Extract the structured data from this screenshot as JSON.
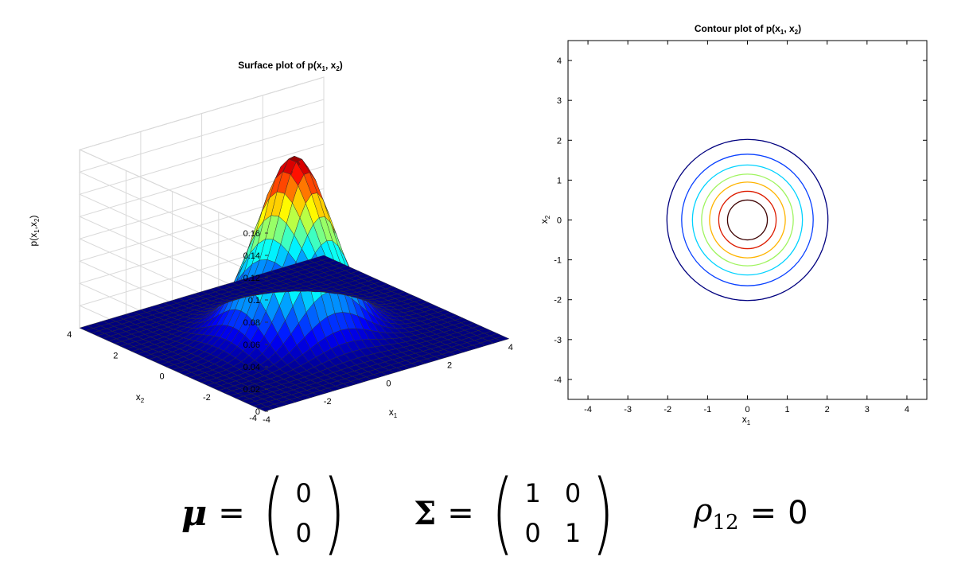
{
  "surface_plot": {
    "title": {
      "main": "Surface plot of p(x",
      "s1": "1",
      "mid": ", x",
      "s2": "2",
      "end": ")"
    },
    "x1_label": {
      "base": "x",
      "sub": "1"
    },
    "x2_label": {
      "base": "x",
      "sub": "2"
    },
    "z_label": {
      "main": "p(x",
      "s1": "1",
      "mid": ",x",
      "s2": "2",
      "end": ")"
    },
    "z_ticks": [
      "0",
      "0.02",
      "0.04",
      "0.06",
      "0.08",
      "0.1",
      "0.12",
      "0.14",
      "0.16"
    ],
    "x1_ticks": [
      "-4",
      "-2",
      "0",
      "2",
      "4"
    ],
    "x2_ticks": [
      "-4",
      "-2",
      "0",
      "2",
      "4"
    ]
  },
  "contour_plot": {
    "title": {
      "main": "Contour plot of p(x",
      "s1": "1",
      "mid": ", x",
      "s2": "2",
      "end": ")"
    },
    "x1_label": {
      "base": "x",
      "sub": "1"
    },
    "x2_label": {
      "base": "x",
      "sub": "2"
    },
    "x_ticks": [
      "-4",
      "-3",
      "-2",
      "-1",
      "0",
      "1",
      "2",
      "3",
      "4"
    ],
    "y_ticks": [
      "4",
      "3",
      "2",
      "1",
      "0",
      "-1",
      "-2",
      "-3",
      "-4"
    ]
  },
  "chart_data": [
    {
      "type": "surface",
      "function": "bivariate normal density",
      "x1_range": [
        -4,
        4
      ],
      "x2_range": [
        -4,
        4
      ],
      "zlim": [
        0,
        0.16
      ],
      "peak": 0.159,
      "grid_step": 0.25,
      "colormap": "jet",
      "mesh_lines": "dark gray"
    },
    {
      "type": "contour",
      "xlim": [
        -4.5,
        4.5
      ],
      "ylim": [
        -4.5,
        4.5
      ],
      "contours": [
        {
          "radius": 0.5,
          "color": "#3d0000"
        },
        {
          "radius": 0.72,
          "color": "#dd1c00"
        },
        {
          "radius": 0.95,
          "color": "#ffb400"
        },
        {
          "radius": 1.15,
          "color": "#9ff45f"
        },
        {
          "radius": 1.38,
          "color": "#00d2ff"
        },
        {
          "radius": 1.65,
          "color": "#0840ff"
        },
        {
          "radius": 2.02,
          "color": "#00007f"
        }
      ]
    }
  ],
  "equations": {
    "mu_symbol": "μ",
    "equals": "=",
    "mu_vector": [
      "0",
      "0"
    ],
    "sigma_symbol": "Σ",
    "sigma_matrix": [
      [
        "1",
        "0"
      ],
      [
        "0",
        "1"
      ]
    ],
    "rho_symbol": "ρ",
    "rho_subscript": "12",
    "rho_value": "0",
    "paren_left": "(",
    "paren_right": ")"
  }
}
